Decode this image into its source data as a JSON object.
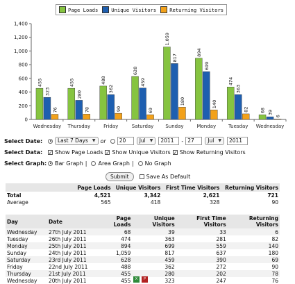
{
  "legend": [
    {
      "label": "Page Loads",
      "color": "#86c440"
    },
    {
      "label": "Unique Visitors",
      "color": "#1e5fb0"
    },
    {
      "label": "Returning Visitors",
      "color": "#f2a11a"
    }
  ],
  "chart_data": {
    "type": "bar",
    "categories": [
      "Wednesday",
      "Thursday",
      "Friday",
      "Saturday",
      "Sunday",
      "Monday",
      "Tuesday",
      "Wednesday"
    ],
    "series": [
      {
        "name": "Page Loads",
        "values": [
          455,
          455,
          488,
          628,
          1059,
          894,
          474,
          68
        ]
      },
      {
        "name": "Unique Visitors",
        "values": [
          323,
          280,
          362,
          459,
          817,
          699,
          363,
          39
        ]
      },
      {
        "name": "Returning Visitors",
        "values": [
          76,
          78,
          90,
          69,
          180,
          140,
          82,
          6
        ]
      }
    ],
    "ylim": [
      0,
      1400
    ],
    "yticks": [
      "0",
      "200",
      "400",
      "600",
      "800",
      "1,000",
      "1,200",
      "1,400"
    ],
    "value_labels": [
      [
        "455",
        "323",
        "76"
      ],
      [
        "455",
        "280",
        "78"
      ],
      [
        "488",
        "362",
        "90"
      ],
      [
        "628",
        "459",
        "69"
      ],
      [
        "1,059",
        "817",
        "180"
      ],
      [
        "894",
        "699",
        "140"
      ],
      [
        "474",
        "363",
        "82"
      ],
      [
        "68",
        "39",
        "6"
      ]
    ],
    "grid": false,
    "legend_position": "top"
  },
  "form": {
    "select_date_label": "Select Date:",
    "range_option": "Last 7 Days",
    "or_text": "or",
    "from_day": "20",
    "from_month": "Jul",
    "from_year": "2011",
    "dash": "-",
    "to_day": "27",
    "to_month": "Jul",
    "to_year": "2011",
    "select_data_label": "Select Data:",
    "show_page_loads": "Show Page Loads",
    "show_unique": "Show Unique Visitors",
    "show_returning": "Show Returning Visitors",
    "select_graph_label": "Select Graph:",
    "bar_graph": "Bar Graph",
    "area_graph": "Area Graph",
    "no_graph": "No Graph",
    "pipe": "|",
    "submit": "Submit",
    "save_default": "Save As Default"
  },
  "summary": {
    "headers": [
      "",
      "Page Loads",
      "Unique Visitors",
      "First Time Visitors",
      "Returning Visitors"
    ],
    "rows": [
      [
        "Total",
        "4,521",
        "3,342",
        "2,621",
        "721"
      ],
      [
        "Average",
        "565",
        "418",
        "328",
        "90"
      ]
    ]
  },
  "daily": {
    "headers": [
      "Day",
      "Date",
      "Page Loads",
      "Unique Visitors",
      "First Time Visitors",
      "Returning Visitors"
    ],
    "rows": [
      [
        "Wednesday",
        "27th July 2011",
        "68",
        "39",
        "33",
        "6"
      ],
      [
        "Tuesday",
        "26th July 2011",
        "474",
        "363",
        "281",
        "82"
      ],
      [
        "Monday",
        "25th July 2011",
        "894",
        "699",
        "559",
        "140"
      ],
      [
        "Sunday",
        "24th July 2011",
        "1,059",
        "817",
        "637",
        "180"
      ],
      [
        "Saturday",
        "23rd July 2011",
        "628",
        "459",
        "390",
        "69"
      ],
      [
        "Friday",
        "22nd July 2011",
        "488",
        "362",
        "272",
        "90"
      ],
      [
        "Thursday",
        "21st July 2011",
        "455",
        "280",
        "202",
        "78"
      ],
      [
        "Wednesday",
        "20th July 2011",
        "455",
        "323",
        "247",
        "76"
      ]
    ]
  },
  "footer_icons": [
    {
      "name": "excel-export-icon",
      "color": "#2f8a3a"
    },
    {
      "name": "pdf-export-icon",
      "color": "#b22222"
    }
  ]
}
